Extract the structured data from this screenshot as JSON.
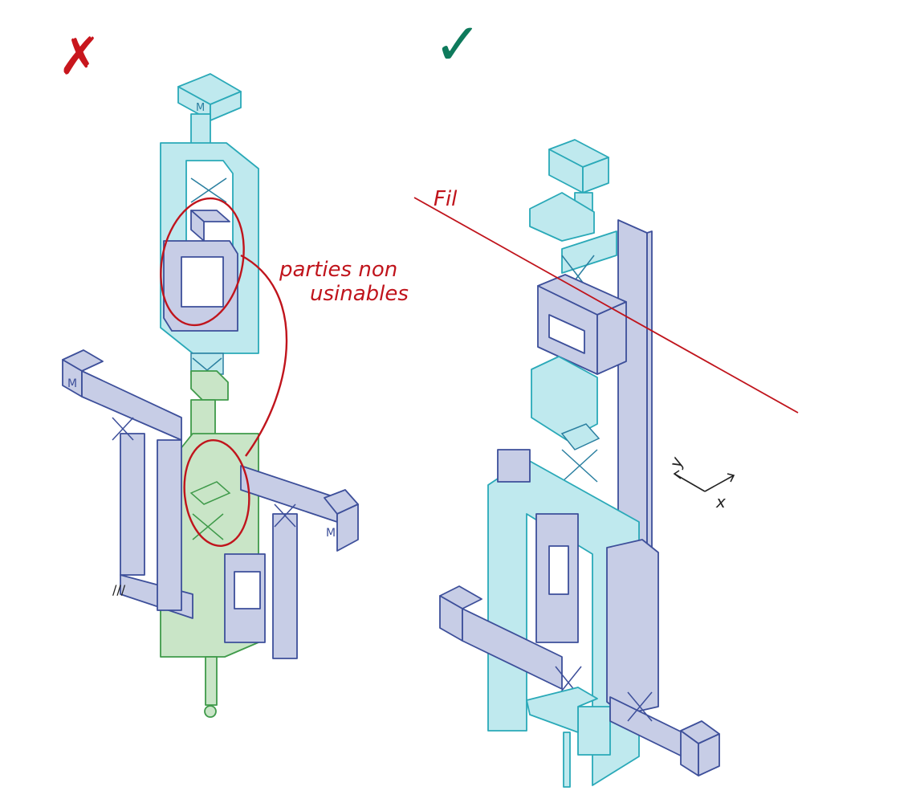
{
  "marks": {
    "cross": "✗",
    "check": "✓"
  },
  "annotations": {
    "parties_line1": "parties non",
    "parties_line2": "usinables",
    "fil": "Fil",
    "axis_y": "y",
    "axis_x": "x"
  },
  "block_labels": {
    "top_mass": "M",
    "left_mass": "M",
    "right_mass": "M",
    "ground": "///"
  },
  "colors": {
    "cross_red": "#c8161d",
    "check_green": "#0e7a5c",
    "annotation_red": "#c0141c",
    "cyan_fill": "#bfe9ee",
    "cyan_stroke": "#2aa9b8",
    "blue_fill": "#c7cde6",
    "blue_stroke": "#3d4f9a",
    "green_fill": "#c9e5c7",
    "green_stroke": "#3f9a4a",
    "ink": "#222222"
  }
}
